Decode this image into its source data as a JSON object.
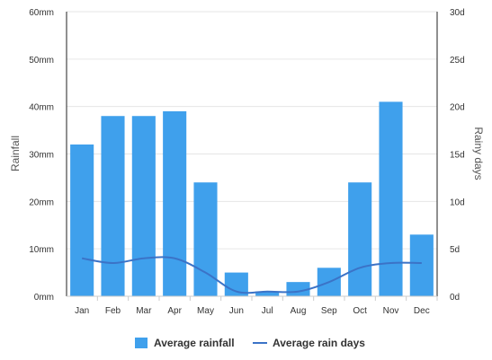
{
  "chart_data": {
    "type": "bar",
    "categories": [
      "Jan",
      "Feb",
      "Mar",
      "Apr",
      "May",
      "Jun",
      "Jul",
      "Aug",
      "Sep",
      "Oct",
      "Nov",
      "Dec"
    ],
    "series": [
      {
        "name": "Average rainfall",
        "type": "bar",
        "axis": "left",
        "color": "#3fa0ec",
        "values": [
          32,
          38,
          38,
          39,
          24,
          5,
          1,
          3,
          6,
          24,
          41,
          13
        ]
      },
      {
        "name": "Average rain days",
        "type": "line",
        "axis": "right",
        "color": "#3b73c7",
        "values": [
          4,
          3.5,
          4,
          4,
          2.5,
          0.5,
          0.5,
          0.5,
          1.5,
          3,
          3.5,
          3.5
        ]
      }
    ],
    "ylabel": "Rainfall",
    "y2label": "Rainy days",
    "ylim": [
      0,
      60
    ],
    "y2lim": [
      0,
      30
    ],
    "yticks": [
      "0mm",
      "10mm",
      "20mm",
      "30mm",
      "40mm",
      "50mm",
      "60mm"
    ],
    "y2ticks": [
      "0d",
      "5d",
      "10d",
      "15d",
      "20d",
      "25d",
      "30d"
    ],
    "grid": true,
    "legend": "bottom"
  }
}
